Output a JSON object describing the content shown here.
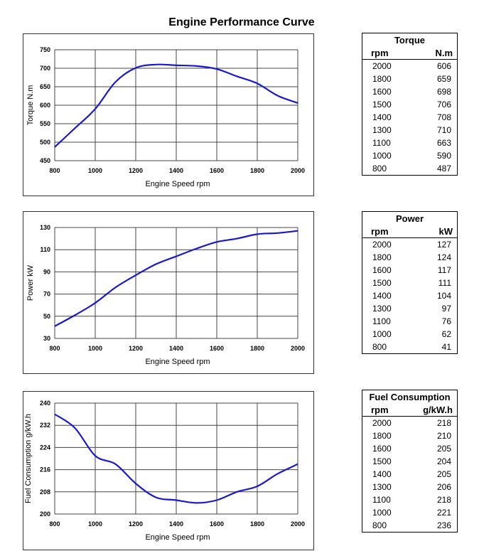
{
  "title": "Engine Performance Curve",
  "chart_data": [
    {
      "type": "line",
      "xlabel": "Engine Speed rpm",
      "ylabel": "Torque N.m",
      "xlim": [
        800,
        2000
      ],
      "ylim": [
        450,
        750
      ],
      "xticks": [
        800,
        1000,
        1200,
        1400,
        1600,
        1800,
        2000
      ],
      "yticks": [
        450,
        500,
        550,
        600,
        650,
        700,
        750
      ],
      "grid": true,
      "color": "#1a1acc",
      "x": [
        800,
        900,
        1000,
        1100,
        1200,
        1300,
        1400,
        1500,
        1600,
        1700,
        1800,
        1900,
        2000
      ],
      "y": [
        487,
        538,
        590,
        663,
        701,
        710,
        708,
        706,
        698,
        678,
        659,
        626,
        606
      ]
    },
    {
      "type": "line",
      "xlabel": "Engine Speed rpm",
      "ylabel": "Power kW",
      "xlim": [
        800,
        2000
      ],
      "ylim": [
        30,
        130
      ],
      "xticks": [
        800,
        1000,
        1200,
        1400,
        1600,
        1800,
        2000
      ],
      "yticks": [
        30,
        50,
        70,
        90,
        110,
        130
      ],
      "grid": true,
      "color": "#1a1acc",
      "x": [
        800,
        900,
        1000,
        1100,
        1200,
        1300,
        1400,
        1500,
        1600,
        1700,
        1800,
        1900,
        2000
      ],
      "y": [
        41,
        51,
        62,
        76,
        87,
        97,
        104,
        111,
        117,
        120,
        124,
        125,
        127
      ]
    },
    {
      "type": "line",
      "xlabel": "Engine Speed rpm",
      "ylabel": "Fuel Consumption g/kW.h",
      "xlim": [
        800,
        2000
      ],
      "ylim": [
        200,
        240
      ],
      "xticks": [
        800,
        1000,
        1200,
        1400,
        1600,
        1800,
        2000
      ],
      "yticks": [
        200,
        208,
        216,
        224,
        232,
        240
      ],
      "grid": true,
      "color": "#1a1acc",
      "x": [
        800,
        900,
        1000,
        1100,
        1200,
        1300,
        1400,
        1500,
        1600,
        1700,
        1800,
        1900,
        2000
      ],
      "y": [
        236,
        231,
        221,
        218,
        211,
        206,
        205,
        204,
        205,
        208,
        210,
        214.5,
        218
      ]
    }
  ],
  "tables": [
    {
      "title": "Torque",
      "col1": "rpm",
      "col2": "N.m",
      "rows": [
        [
          "2000",
          "606"
        ],
        [
          "1800",
          "659"
        ],
        [
          "1600",
          "698"
        ],
        [
          "1500",
          "706"
        ],
        [
          "1400",
          "708"
        ],
        [
          "1300",
          "710"
        ],
        [
          "1100",
          "663"
        ],
        [
          "1000",
          "590"
        ],
        [
          "800",
          "487"
        ]
      ]
    },
    {
      "title": "Power",
      "col1": "rpm",
      "col2": "kW",
      "rows": [
        [
          "2000",
          "127"
        ],
        [
          "1800",
          "124"
        ],
        [
          "1600",
          "117"
        ],
        [
          "1500",
          "111"
        ],
        [
          "1400",
          "104"
        ],
        [
          "1300",
          "97"
        ],
        [
          "1100",
          "76"
        ],
        [
          "1000",
          "62"
        ],
        [
          "800",
          "41"
        ]
      ]
    },
    {
      "title": "Fuel Consumption",
      "col1": "rpm",
      "col2": "g/kW.h",
      "rows": [
        [
          "2000",
          "218"
        ],
        [
          "1800",
          "210"
        ],
        [
          "1600",
          "205"
        ],
        [
          "1500",
          "204"
        ],
        [
          "1400",
          "205"
        ],
        [
          "1300",
          "206"
        ],
        [
          "1100",
          "218"
        ],
        [
          "1000",
          "221"
        ],
        [
          "800",
          "236"
        ]
      ]
    }
  ]
}
